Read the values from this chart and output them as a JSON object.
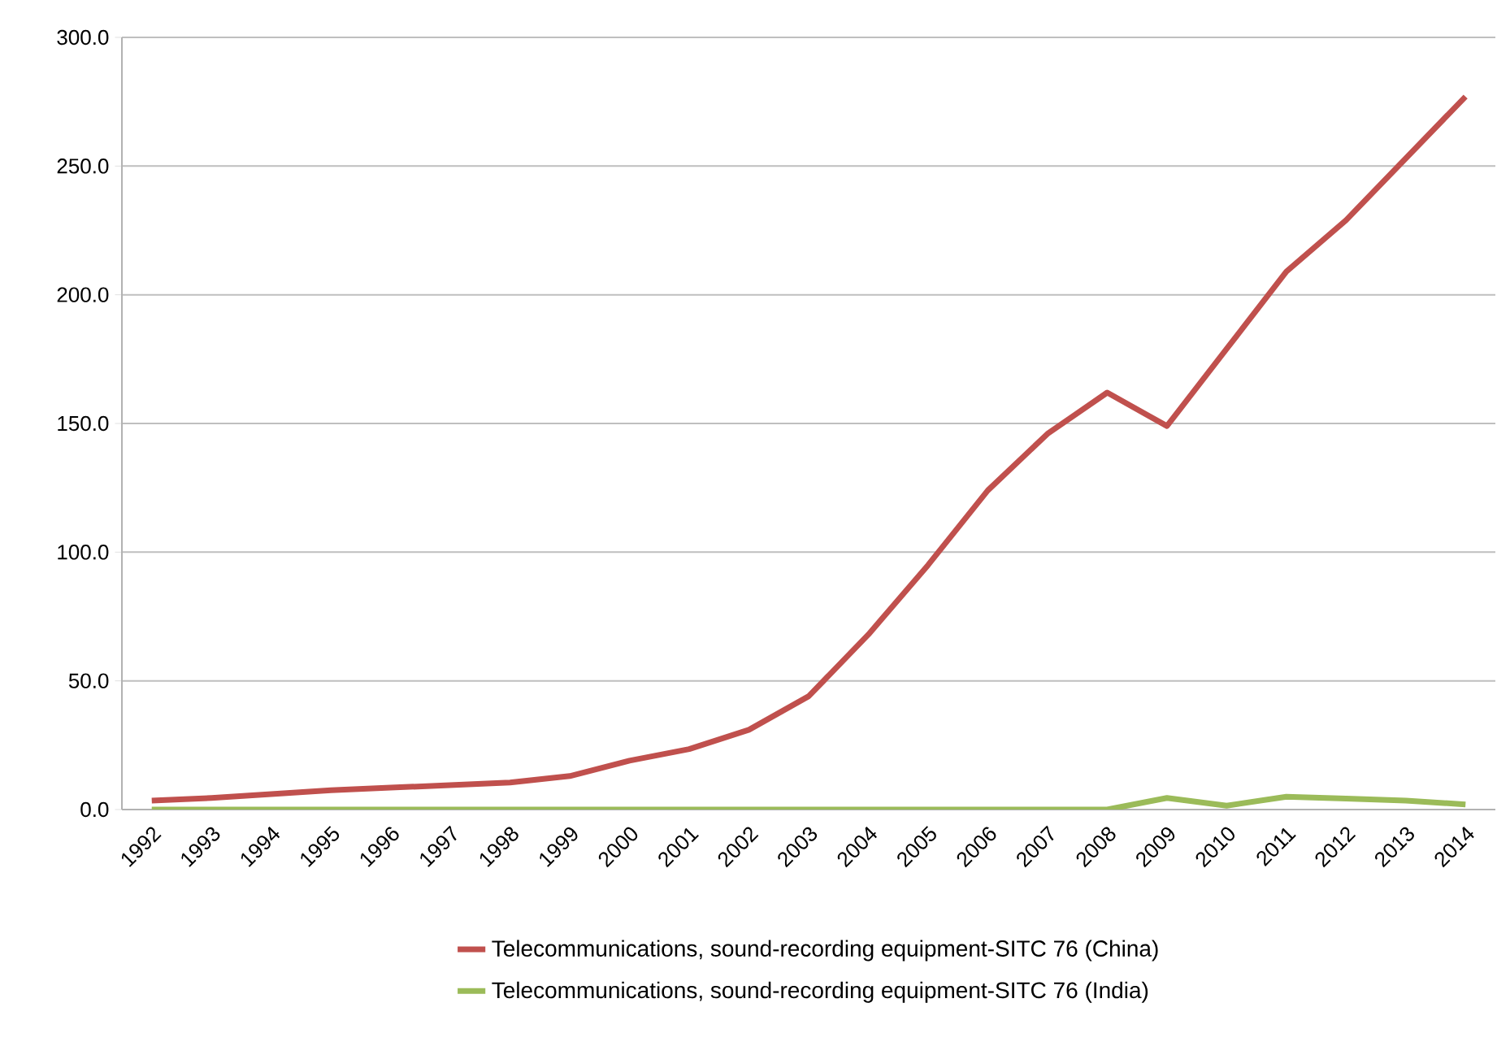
{
  "chart_data": {
    "type": "line",
    "categories": [
      "1992",
      "1993",
      "1994",
      "1995",
      "1996",
      "1997",
      "1998",
      "1999",
      "2000",
      "2001",
      "2002",
      "2003",
      "2004",
      "2005",
      "2006",
      "2007",
      "2008",
      "2009",
      "2010",
      "2011",
      "2012",
      "2013",
      "2014"
    ],
    "series": [
      {
        "name": "Telecommunications, sound-recording equipment-SITC 76 (China)",
        "color": "#c0504d",
        "values": [
          3.5,
          4.5,
          6,
          7.5,
          8.5,
          9.5,
          10.5,
          13,
          19,
          23.5,
          31,
          44,
          68,
          95,
          124,
          146,
          162,
          149,
          179,
          209,
          229,
          253,
          277
        ]
      },
      {
        "name": "Telecommunications, sound-recording equipment-SITC 76 (India)",
        "color": "#9bbb59",
        "values": [
          0,
          0,
          0,
          0,
          0,
          0,
          0,
          0,
          0,
          0,
          0,
          0,
          0,
          0,
          0,
          0,
          0,
          4.5,
          1.5,
          5,
          4.3,
          3.5,
          2
        ]
      }
    ],
    "ylim": [
      0,
      300
    ],
    "yticks": [
      {
        "value": 0,
        "label": "0.0"
      },
      {
        "value": 50,
        "label": "50.0"
      },
      {
        "value": 100,
        "label": "100.0"
      },
      {
        "value": 150,
        "label": "150.0"
      },
      {
        "value": 200,
        "label": "200.0"
      },
      {
        "value": 250,
        "label": "250.0"
      },
      {
        "value": 300,
        "label": "300.0"
      }
    ],
    "grid": "y",
    "legend": "bottom",
    "marker": "none",
    "line_style": "solid"
  }
}
